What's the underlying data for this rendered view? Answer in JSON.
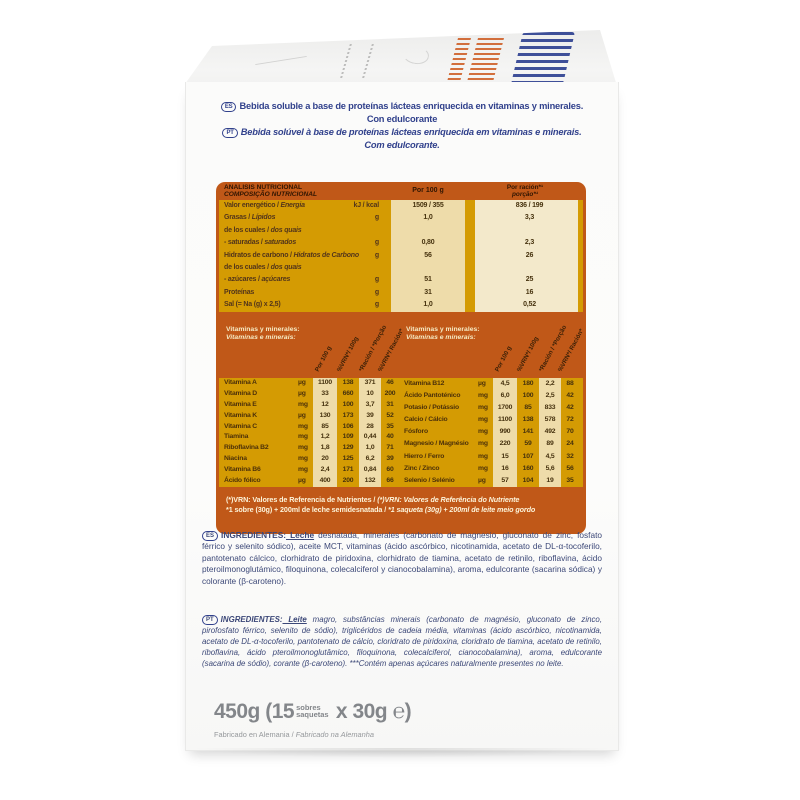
{
  "descriptions": {
    "es_badge": "ES",
    "pt_badge": "PT",
    "es_line1": "Bebida soluble a base de proteínas lácteas enriquecida en vitaminas y minerales.",
    "es_line2": "Con edulcorante",
    "pt_line1": "Bebida solúvel à base de proteínas lácteas enriquecida em vitaminas e minerais.",
    "pt_line2": "Com edulcorante."
  },
  "nutrition_panel": {
    "title_es": "ANALISIS NUTRICIONAL",
    "title_pt": "COMPOSIÇÃO NUTRICIONAL",
    "col_per100": "Por 100 g",
    "col_racion_es": "Por ración*¹",
    "col_racion_pt": "porção*¹",
    "rows": [
      {
        "es": "Valor energético / ",
        "pt": "Energia",
        "unit": "kJ / kcal",
        "per100": "1509 / 355",
        "racion": "836 / 199"
      },
      {
        "es": "Grasas / ",
        "pt": "Lípidos",
        "unit": "g",
        "per100": "1,0",
        "racion": "3,3"
      },
      {
        "es": "de los cuales / ",
        "pt": "dos quais",
        "unit": "",
        "per100": "",
        "racion": ""
      },
      {
        "es": "- saturadas / ",
        "pt": "saturados",
        "unit": "g",
        "per100": "0,80",
        "racion": "2,3"
      },
      {
        "es": "Hidratos de carbono / ",
        "pt": "Hidratos de Carbono",
        "unit": "g",
        "per100": "56",
        "racion": "26"
      },
      {
        "es": "de los cuales / ",
        "pt": "dos quais",
        "unit": "",
        "per100": "",
        "racion": ""
      },
      {
        "es": "- azúcares / ",
        "pt": "açúcares",
        "unit": "g",
        "per100": "51",
        "racion": "25"
      },
      {
        "es": "Proteínas",
        "pt": "",
        "unit": "g",
        "per100": "31",
        "racion": "16"
      },
      {
        "es": "Sal (= Na (g) x 2,5)",
        "pt": "",
        "unit": "g",
        "per100": "1,0",
        "racion": "0,52"
      }
    ]
  },
  "vitamins": {
    "header_es": "Vitaminas y minerales:",
    "header_pt": "Vitaminas e minerais:",
    "col_headers": [
      "Por 100 g",
      "%VRN*/ 100g",
      "*Ración / *Porção",
      "%VRN*/ Ración*"
    ],
    "left_rows": [
      {
        "name": "Vitamina A",
        "unit": "µg",
        "v1": "1100",
        "v2": "138",
        "v3": "371",
        "v4": "46"
      },
      {
        "name": "Vitamina D",
        "unit": "µg",
        "v1": "33",
        "v2": "660",
        "v3": "10",
        "v4": "200"
      },
      {
        "name": "Vitamina E",
        "unit": "mg",
        "v1": "12",
        "v2": "100",
        "v3": "3,7",
        "v4": "31"
      },
      {
        "name": "Vitamina K",
        "unit": "µg",
        "v1": "130",
        "v2": "173",
        "v3": "39",
        "v4": "52"
      },
      {
        "name": "Vitamina C",
        "unit": "mg",
        "v1": "85",
        "v2": "106",
        "v3": "28",
        "v4": "35"
      },
      {
        "name": "Tiamina",
        "unit": "mg",
        "v1": "1,2",
        "v2": "109",
        "v3": "0,44",
        "v4": "40"
      },
      {
        "name": "Riboflavina B2",
        "unit": "mg",
        "v1": "1,8",
        "v2": "129",
        "v3": "1,0",
        "v4": "71"
      },
      {
        "name": "Niacina",
        "unit": "mg",
        "v1": "20",
        "v2": "125",
        "v3": "6,2",
        "v4": "39"
      },
      {
        "name": "Vitamina B6",
        "unit": "mg",
        "v1": "2,4",
        "v2": "171",
        "v3": "0,84",
        "v4": "60"
      },
      {
        "name": "Ácido fólico",
        "unit": "µg",
        "v1": "400",
        "v2": "200",
        "v3": "132",
        "v4": "66"
      }
    ],
    "right_rows": [
      {
        "name": "Vitamina B12",
        "unit": "µg",
        "v1": "4,5",
        "v2": "180",
        "v3": "2,2",
        "v4": "88"
      },
      {
        "name": "Ácido Pantoténico",
        "unit": "mg",
        "v1": "6,0",
        "v2": "100",
        "v3": "2,5",
        "v4": "42"
      },
      {
        "name": "Potasio / Potássio",
        "unit": "mg",
        "v1": "1700",
        "v2": "85",
        "v3": "833",
        "v4": "42"
      },
      {
        "name": "Calcio / Cálcio",
        "unit": "mg",
        "v1": "1100",
        "v2": "138",
        "v3": "578",
        "v4": "72"
      },
      {
        "name": "Fósforo",
        "unit": "mg",
        "v1": "990",
        "v2": "141",
        "v3": "492",
        "v4": "70"
      },
      {
        "name": "Magnesio / Magnésio",
        "unit": "mg",
        "v1": "220",
        "v2": "59",
        "v3": "89",
        "v4": "24"
      },
      {
        "name": "Hierro / Ferro",
        "unit": "mg",
        "v1": "15",
        "v2": "107",
        "v3": "4,5",
        "v4": "32"
      },
      {
        "name": "Zinc / Zinco",
        "unit": "mg",
        "v1": "16",
        "v2": "160",
        "v3": "5,6",
        "v4": "56"
      },
      {
        "name": "Selenio / Selénio",
        "unit": "µg",
        "v1": "57",
        "v2": "104",
        "v3": "19",
        "v4": "35"
      }
    ]
  },
  "footnote": {
    "line1_es": "(*)VRN: Valores de Referencia de Nutrientes / ",
    "line1_pt": "(*)VRN: Valores de Referência do Nutriente",
    "line2_es": "*1 sobre (30g) + 200ml de leche semidesnatada / ",
    "line2_pt": "*1 saqueta (30g) + 200ml de leite meio gordo"
  },
  "ingredients_es": {
    "badge": "ES",
    "label": "INGREDIENTES:",
    "allergen": " Leche",
    "text": " desnatada, minerales (carbonato de magnesio, gluconato de zinc, fosfato férrico y selenito sódico), aceite MCT, vitaminas (ácido ascórbico, nicotinamida, acetato de DL-α-tocoferilo, pantotenato cálcico, clorhidrato de piridoxina, clorhidrato de tiamina, acetato de retinilo, riboflavina, ácido pteroilmonoglutámico, filoquinona, colecalciferol y cianocobalamina), aroma, edulcorante (sacarina sódica) y colorante (β-caroteno)."
  },
  "ingredients_pt": {
    "badge": "PT",
    "label": "INGREDIENTES:",
    "allergen": " Leite",
    "text": " magro, substâncias minerais (carbonato de magnésio, gluconato de zinco, pirofosfato férrico, selenito de sódio), triglicéridos de cadeia média, vitaminas (ácido ascórbico, nicotinamida, acetato de DL-α-tocoferilo, pantotenato de cálcio, cloridrato de piridoxina, cloridrato de tiamina, acetato de retinilo, riboflavina, ácido pteroilmonoglutâmico, filoquinona, colecalciferol, cianocobalamina), aroma, edulcorante (sacarina de sódio), corante (β-caroteno). ***Contém apenas açúcares naturalmente presentes no leite."
  },
  "weight": {
    "main_left": "450g (15",
    "stack_top": "sobres",
    "stack_bottom": "saquetas",
    "main_right": " x 30g ℮)",
    "made_in_es": "Fabricado en Alemania / ",
    "made_in_pt": "Fabricado na Alemanha"
  },
  "colors": {
    "panel_orange": "#c05818",
    "panel_gold": "#d49b03",
    "stripe_cream": "#eedcaa",
    "text_navy": "#31418c"
  }
}
